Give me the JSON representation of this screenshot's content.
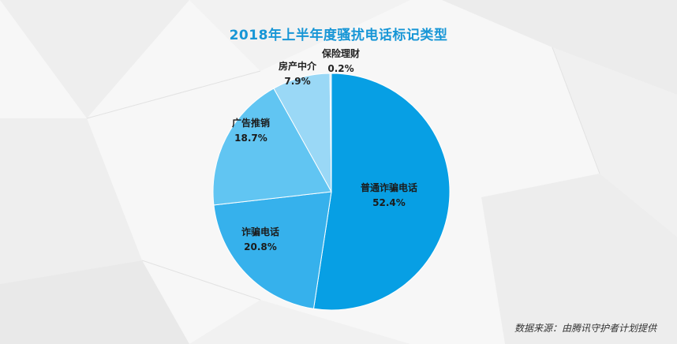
{
  "chart_data": {
    "type": "pie",
    "title": "2018年上半年度骚扰电话标记类型",
    "slices": [
      {
        "label": "普通诈骗电话",
        "value": 52.4,
        "value_label": "52.4%",
        "color": "#079fe4"
      },
      {
        "label": "诈骗电话",
        "value": 20.8,
        "value_label": "20.8%",
        "color": "#36b1ec"
      },
      {
        "label": "广告推销",
        "value": 18.7,
        "value_label": "18.7%",
        "color": "#61c5f2"
      },
      {
        "label": "房产中介",
        "value": 7.9,
        "value_label": "7.9%",
        "color": "#9ad8f6"
      },
      {
        "label": "保险理财",
        "value": 0.2,
        "value_label": "0.2%",
        "color": "#c4e9fa"
      }
    ],
    "start_angle_deg": 0,
    "direction": "clockwise"
  },
  "footer": {
    "source": "数据来源：由腾讯守护者计划提供"
  }
}
